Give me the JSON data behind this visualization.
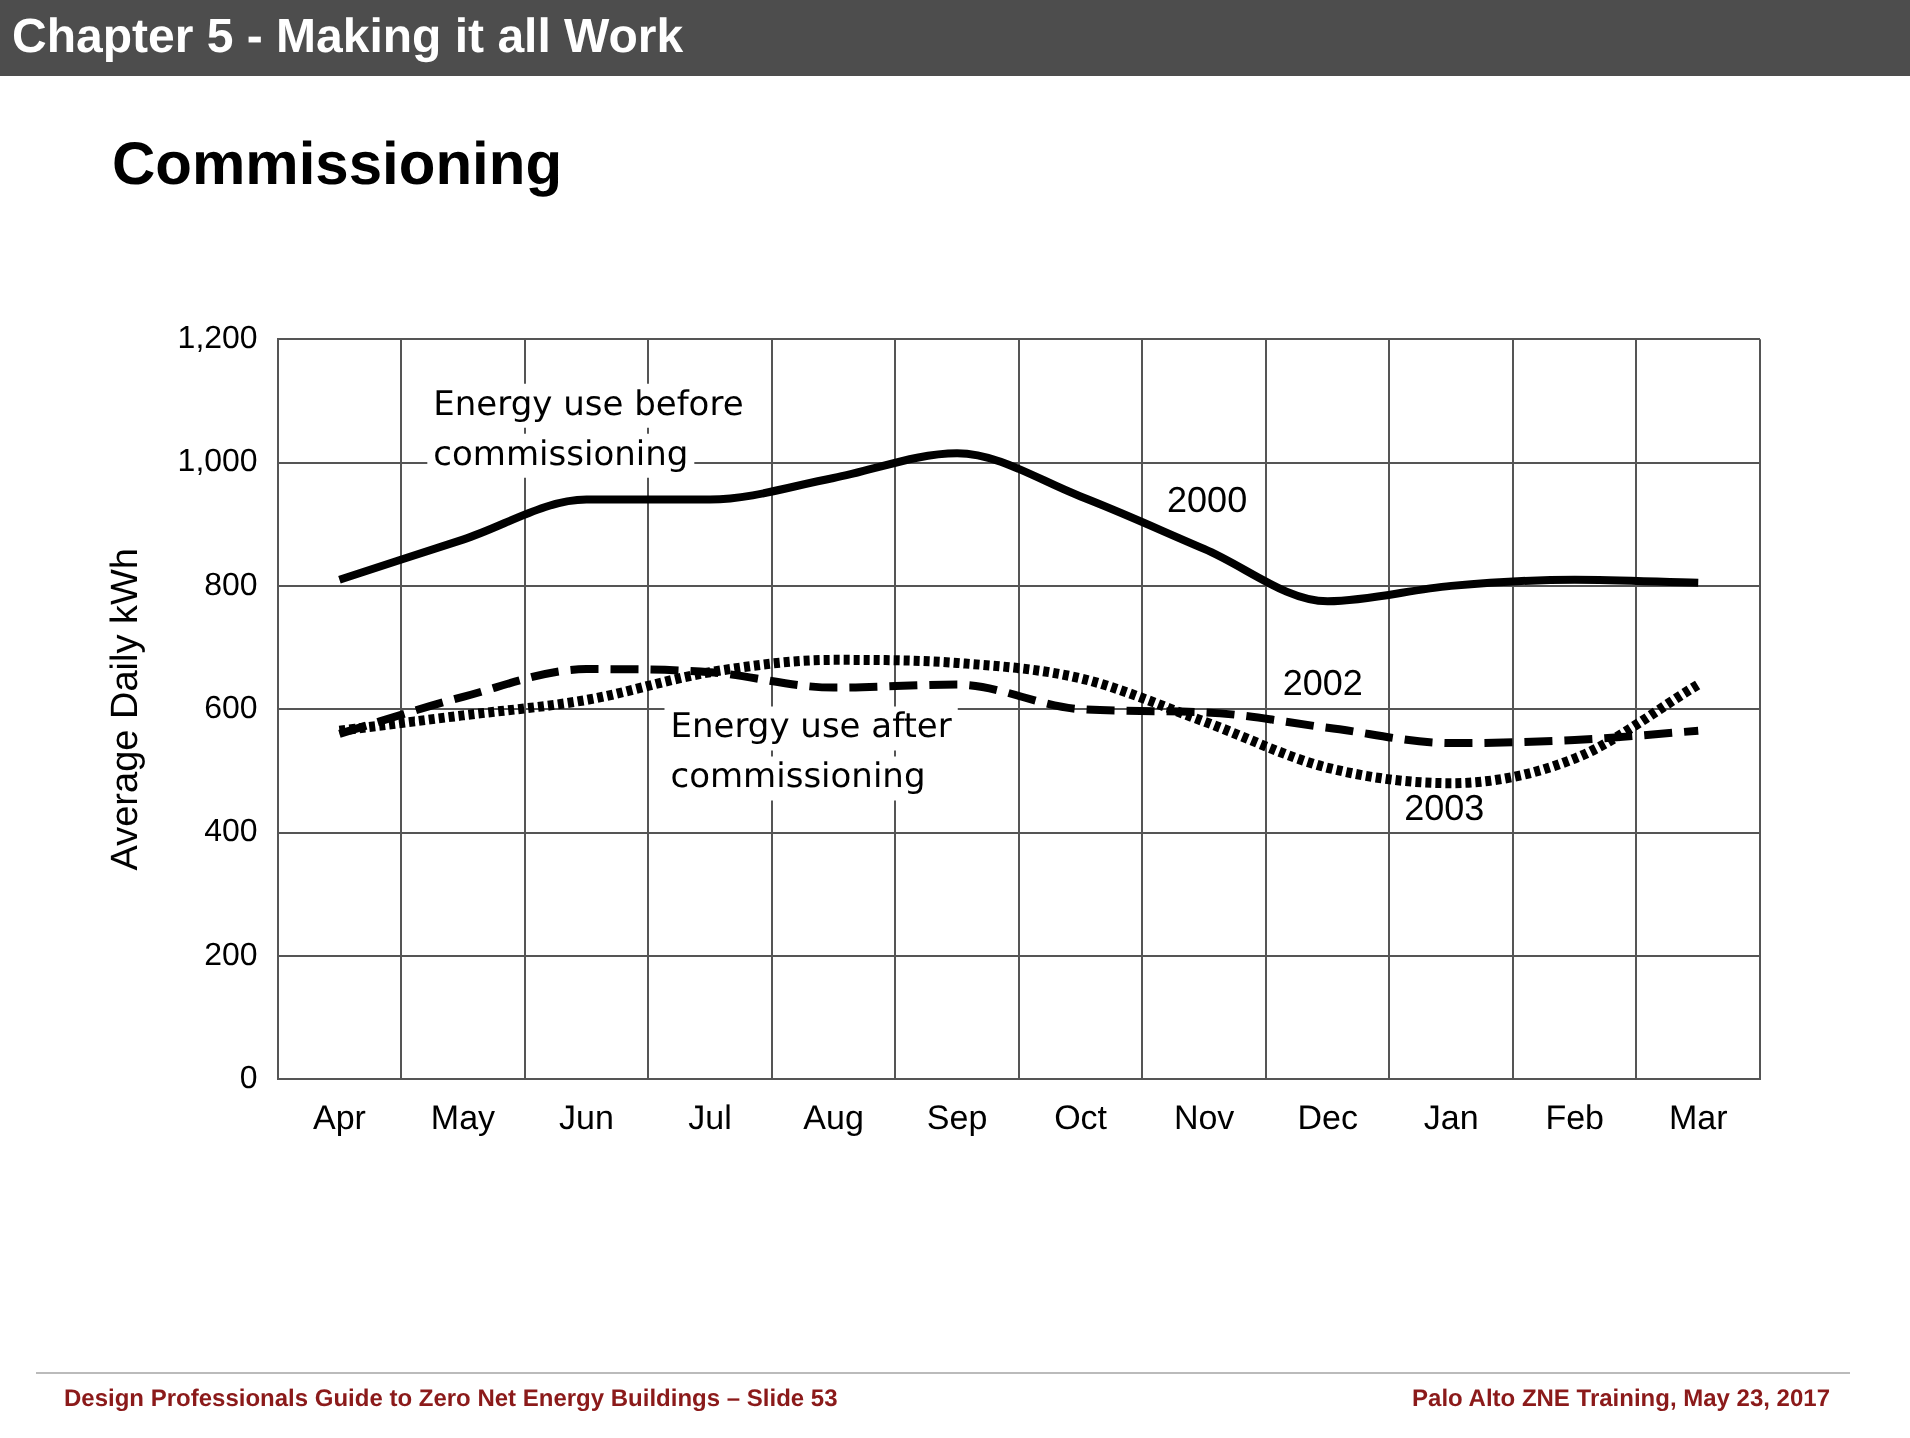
{
  "chart_data": {
    "type": "line",
    "title": "Chapter 5 - Making it all Work",
    "subtitle": "Commissioning",
    "ylabel": "Average Daily kWh",
    "categories": [
      "Apr",
      "May",
      "Jun",
      "Jul",
      "Aug",
      "Sep",
      "Oct",
      "Nov",
      "Dec",
      "Jan",
      "Feb",
      "Mar"
    ],
    "series": [
      {
        "name": "2000",
        "color": "#000000",
        "line_style": "solid",
        "values": [
          810,
          875,
          940,
          940,
          975,
          1015,
          945,
          860,
          775,
          800,
          810,
          805
        ]
      },
      {
        "name": "2002",
        "color": "#000000",
        "line_style": "dashed",
        "values": [
          560,
          620,
          665,
          660,
          635,
          640,
          600,
          595,
          570,
          545,
          550,
          565
        ]
      },
      {
        "name": "2003",
        "color": "#000000",
        "line_style": "dotted",
        "values": [
          565,
          590,
          615,
          660,
          680,
          675,
          650,
          580,
          505,
          480,
          520,
          640
        ]
      }
    ],
    "ylim": [
      0,
      1200
    ],
    "yticks": [
      0,
      200,
      400,
      600,
      800,
      {
        "value": 1000,
        "label": "1,000"
      },
      {
        "value": 1200,
        "label": "1,200"
      }
    ],
    "grid": true,
    "legend": false,
    "marker": "none",
    "annotations": [
      "Energy use before\ncommissioning",
      "Energy use after\ncommissioning",
      "Design Professionals Guide to Zero Net Energy Buildings – Slide 53",
      "Palo Alto ZNE Training, May 23, 2017"
    ]
  }
}
